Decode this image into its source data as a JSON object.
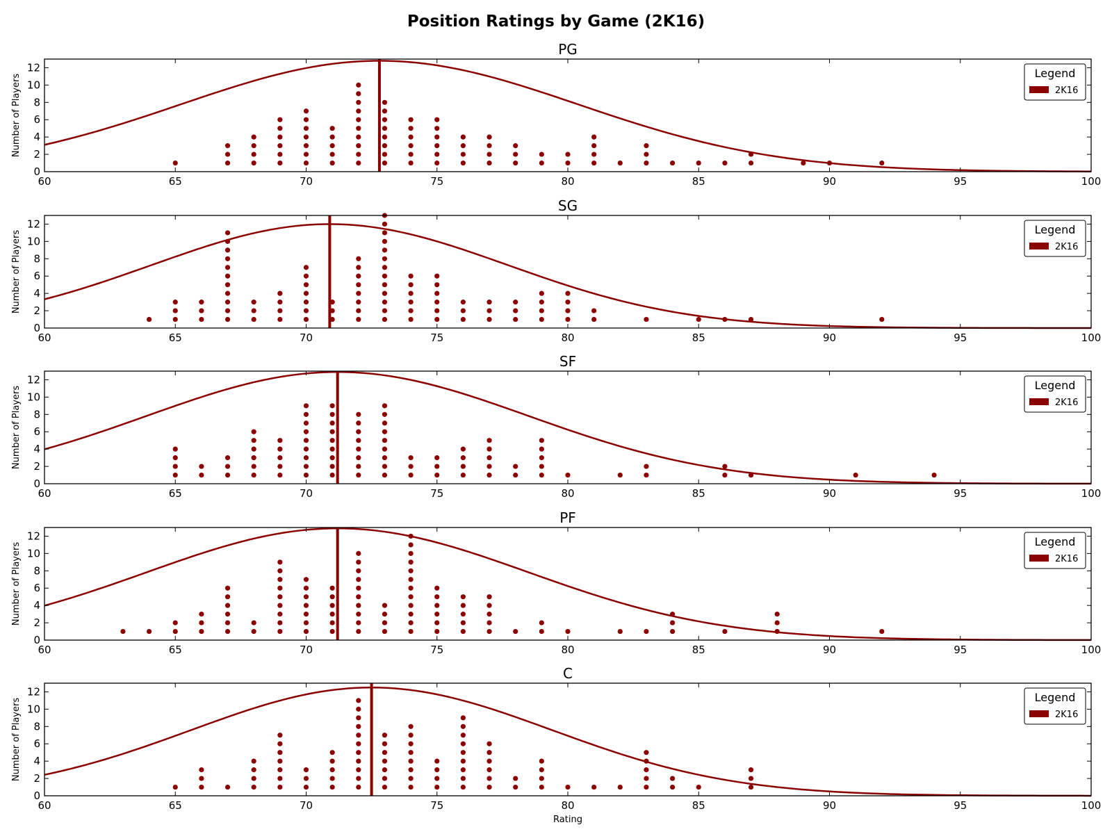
{
  "figure": {
    "title": "Position Ratings by Game (2K16)"
  },
  "colors": {
    "series": "#8b0000",
    "axis": "#000000",
    "background": "#ffffff"
  },
  "chart_data": [
    {
      "type": "scatter",
      "title": "PG",
      "xlabel": "",
      "ylabel": "Number of Players",
      "xlim": [
        60,
        100
      ],
      "ylim": [
        0,
        13
      ],
      "xticks": [
        60,
        65,
        70,
        75,
        80,
        85,
        90,
        95,
        100
      ],
      "yticks": [
        0,
        2,
        4,
        6,
        8,
        10,
        12
      ],
      "legend": {
        "title": "Legend",
        "position": "top-right",
        "entries": [
          "2K16"
        ]
      },
      "counts": [
        [
          65,
          1
        ],
        [
          67,
          3
        ],
        [
          68,
          4
        ],
        [
          69,
          6
        ],
        [
          70,
          7
        ],
        [
          71,
          5
        ],
        [
          72,
          10
        ],
        [
          73,
          8
        ],
        [
          74,
          6
        ],
        [
          75,
          6
        ],
        [
          76,
          4
        ],
        [
          77,
          4
        ],
        [
          78,
          3
        ],
        [
          79,
          2
        ],
        [
          80,
          2
        ],
        [
          81,
          4
        ],
        [
          82,
          1
        ],
        [
          83,
          3
        ],
        [
          84,
          1
        ],
        [
          85,
          1
        ],
        [
          86,
          1
        ],
        [
          87,
          2
        ],
        [
          89,
          1
        ],
        [
          90,
          1
        ],
        [
          92,
          1
        ]
      ],
      "mean_line": 72.8,
      "curve": {
        "mean": 72.8,
        "sd": 7.6,
        "peak": 12.8
      }
    },
    {
      "type": "scatter",
      "title": "SG",
      "xlabel": "",
      "ylabel": "Number of Players",
      "xlim": [
        60,
        100
      ],
      "ylim": [
        0,
        13
      ],
      "xticks": [
        60,
        65,
        70,
        75,
        80,
        85,
        90,
        95,
        100
      ],
      "yticks": [
        0,
        2,
        4,
        6,
        8,
        10,
        12
      ],
      "legend": {
        "title": "Legend",
        "position": "top-right",
        "entries": [
          "2K16"
        ]
      },
      "counts": [
        [
          64,
          1
        ],
        [
          65,
          3
        ],
        [
          66,
          3
        ],
        [
          67,
          11
        ],
        [
          68,
          3
        ],
        [
          69,
          4
        ],
        [
          70,
          7
        ],
        [
          71,
          3
        ],
        [
          72,
          8
        ],
        [
          73,
          13
        ],
        [
          74,
          6
        ],
        [
          75,
          6
        ],
        [
          76,
          3
        ],
        [
          77,
          3
        ],
        [
          78,
          3
        ],
        [
          79,
          4
        ],
        [
          80,
          4
        ],
        [
          81,
          2
        ],
        [
          83,
          1
        ],
        [
          85,
          1
        ],
        [
          86,
          1
        ],
        [
          87,
          1
        ],
        [
          92,
          1
        ]
      ],
      "mean_line": 70.9,
      "curve": {
        "mean": 70.9,
        "sd": 6.8,
        "peak": 12.0
      }
    },
    {
      "type": "scatter",
      "title": "SF",
      "xlabel": "",
      "ylabel": "Number of Players",
      "xlim": [
        60,
        100
      ],
      "ylim": [
        0,
        13
      ],
      "xticks": [
        60,
        65,
        70,
        75,
        80,
        85,
        90,
        95,
        100
      ],
      "yticks": [
        0,
        2,
        4,
        6,
        8,
        10,
        12
      ],
      "legend": {
        "title": "Legend",
        "position": "top-right",
        "entries": [
          "2K16"
        ]
      },
      "counts": [
        [
          65,
          4
        ],
        [
          66,
          2
        ],
        [
          67,
          3
        ],
        [
          68,
          6
        ],
        [
          69,
          5
        ],
        [
          70,
          9
        ],
        [
          71,
          9
        ],
        [
          72,
          8
        ],
        [
          73,
          9
        ],
        [
          74,
          3
        ],
        [
          75,
          3
        ],
        [
          76,
          4
        ],
        [
          77,
          5
        ],
        [
          78,
          2
        ],
        [
          79,
          5
        ],
        [
          80,
          1
        ],
        [
          82,
          1
        ],
        [
          83,
          2
        ],
        [
          86,
          2
        ],
        [
          87,
          1
        ],
        [
          91,
          1
        ],
        [
          94,
          1
        ]
      ],
      "mean_line": 71.2,
      "curve": {
        "mean": 71.2,
        "sd": 7.3,
        "peak": 12.9
      }
    },
    {
      "type": "scatter",
      "title": "PF",
      "xlabel": "",
      "ylabel": "Number of Players",
      "xlim": [
        60,
        100
      ],
      "ylim": [
        0,
        13
      ],
      "xticks": [
        60,
        65,
        70,
        75,
        80,
        85,
        90,
        95,
        100
      ],
      "yticks": [
        0,
        2,
        4,
        6,
        8,
        10,
        12
      ],
      "legend": {
        "title": "Legend",
        "position": "top-right",
        "entries": [
          "2K16"
        ]
      },
      "counts": [
        [
          63,
          1
        ],
        [
          64,
          1
        ],
        [
          65,
          2
        ],
        [
          66,
          3
        ],
        [
          67,
          6
        ],
        [
          68,
          2
        ],
        [
          69,
          9
        ],
        [
          70,
          7
        ],
        [
          71,
          6
        ],
        [
          72,
          10
        ],
        [
          73,
          4
        ],
        [
          74,
          12
        ],
        [
          75,
          6
        ],
        [
          76,
          5
        ],
        [
          77,
          5
        ],
        [
          78,
          1
        ],
        [
          79,
          2
        ],
        [
          80,
          1
        ],
        [
          82,
          1
        ],
        [
          83,
          1
        ],
        [
          84,
          3
        ],
        [
          86,
          1
        ],
        [
          88,
          3
        ],
        [
          92,
          1
        ]
      ],
      "mean_line": 71.2,
      "curve": {
        "mean": 71.2,
        "sd": 7.3,
        "peak": 12.9
      }
    },
    {
      "type": "scatter",
      "title": "C",
      "xlabel": "Rating",
      "ylabel": "Number of Players",
      "xlim": [
        60,
        100
      ],
      "ylim": [
        0,
        13
      ],
      "xticks": [
        60,
        65,
        70,
        75,
        80,
        85,
        90,
        95,
        100
      ],
      "yticks": [
        0,
        2,
        4,
        6,
        8,
        10,
        12
      ],
      "legend": {
        "title": "Legend",
        "position": "top-right",
        "entries": [
          "2K16"
        ]
      },
      "counts": [
        [
          65,
          1
        ],
        [
          66,
          3
        ],
        [
          67,
          1
        ],
        [
          68,
          4
        ],
        [
          69,
          7
        ],
        [
          70,
          3
        ],
        [
          71,
          5
        ],
        [
          72,
          11
        ],
        [
          73,
          7
        ],
        [
          74,
          8
        ],
        [
          75,
          4
        ],
        [
          76,
          9
        ],
        [
          77,
          6
        ],
        [
          78,
          2
        ],
        [
          79,
          4
        ],
        [
          80,
          1
        ],
        [
          81,
          1
        ],
        [
          82,
          1
        ],
        [
          83,
          5
        ],
        [
          84,
          2
        ],
        [
          85,
          1
        ],
        [
          87,
          3
        ]
      ],
      "mean_line": 72.5,
      "curve": {
        "mean": 72.5,
        "sd": 6.9,
        "peak": 12.5
      }
    }
  ]
}
